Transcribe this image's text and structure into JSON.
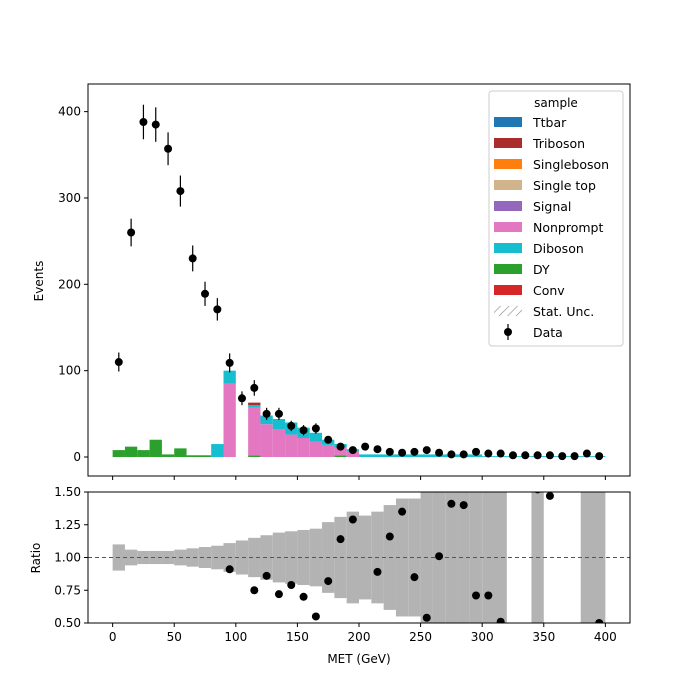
{
  "chart_data": [
    {
      "type": "bar",
      "panel": "main",
      "xlabel": "",
      "ylabel": "Events",
      "xlim": [
        -20,
        420
      ],
      "ylim": [
        -22,
        432
      ],
      "x_ticks": [
        0,
        50,
        100,
        150,
        200,
        250,
        300,
        350,
        400
      ],
      "y_ticks": [
        0,
        100,
        200,
        300,
        400
      ],
      "bin_width": 10,
      "stacked": true,
      "legend": {
        "title": "sample",
        "placement": "top-right",
        "entries": [
          {
            "label": "Ttbar",
            "color": "#1f77b4",
            "kind": "patch"
          },
          {
            "label": "Triboson",
            "color": "#aa2c2c",
            "kind": "patch"
          },
          {
            "label": "Singleboson",
            "color": "#ff7f0e",
            "kind": "patch"
          },
          {
            "label": "Single top",
            "color": "#d2b48c",
            "kind": "patch"
          },
          {
            "label": "Signal",
            "color": "#9467bd",
            "kind": "patch"
          },
          {
            "label": "Nonprompt",
            "color": "#e377c2",
            "kind": "patch"
          },
          {
            "label": "Diboson",
            "color": "#17becf",
            "kind": "patch"
          },
          {
            "label": "DY",
            "color": "#2ca02c",
            "kind": "patch"
          },
          {
            "label": "Conv",
            "color": "#d62728",
            "kind": "patch"
          },
          {
            "label": "Stat. Unc.",
            "color": "#888888",
            "kind": "hatch"
          },
          {
            "label": "Data",
            "color": "#000000",
            "kind": "errorbar"
          }
        ]
      },
      "series": [
        {
          "name": "DY",
          "color": "#2ca02c",
          "bins": [
            {
              "x0": 0,
              "x1": 10,
              "y": 8
            },
            {
              "x0": 10,
              "x1": 20,
              "y": 12
            },
            {
              "x0": 20,
              "x1": 30,
              "y": 8
            },
            {
              "x0": 30,
              "x1": 40,
              "y": 20
            },
            {
              "x0": 40,
              "x1": 50,
              "y": 3
            },
            {
              "x0": 50,
              "x1": 60,
              "y": 10
            },
            {
              "x0": 60,
              "x1": 80,
              "y": 2
            },
            {
              "x0": 110,
              "x1": 120,
              "y": 2
            },
            {
              "x0": 180,
              "x1": 190,
              "y": 2
            }
          ]
        },
        {
          "name": "Nonprompt",
          "color": "#e377c2",
          "bins": [
            {
              "x0": 90,
              "x1": 100,
              "y": 85
            },
            {
              "x0": 110,
              "x1": 120,
              "y": 55
            },
            {
              "x0": 120,
              "x1": 130,
              "y": 38
            },
            {
              "x0": 130,
              "x1": 140,
              "y": 32
            },
            {
              "x0": 140,
              "x1": 150,
              "y": 26
            },
            {
              "x0": 150,
              "x1": 160,
              "y": 22
            },
            {
              "x0": 160,
              "x1": 170,
              "y": 18
            },
            {
              "x0": 170,
              "x1": 180,
              "y": 14
            },
            {
              "x0": 180,
              "x1": 190,
              "y": 9
            },
            {
              "x0": 190,
              "x1": 200,
              "y": 6
            }
          ]
        },
        {
          "name": "Diboson",
          "color": "#17becf",
          "bins": [
            {
              "x0": 80,
              "x1": 90,
              "y": 15
            },
            {
              "x0": 90,
              "x1": 100,
              "y": 15
            },
            {
              "x0": 110,
              "x1": 120,
              "y": 3
            },
            {
              "x0": 120,
              "x1": 130,
              "y": 10
            },
            {
              "x0": 130,
              "x1": 140,
              "y": 12
            },
            {
              "x0": 140,
              "x1": 150,
              "y": 14
            },
            {
              "x0": 150,
              "x1": 160,
              "y": 12
            },
            {
              "x0": 160,
              "x1": 170,
              "y": 10
            },
            {
              "x0": 170,
              "x1": 180,
              "y": 6
            },
            {
              "x0": 180,
              "x1": 190,
              "y": 4
            },
            {
              "x0": 190,
              "x1": 200,
              "y": 3
            },
            {
              "x0": 200,
              "x1": 300,
              "y": 3
            },
            {
              "x0": 300,
              "x1": 400,
              "y": 1
            }
          ]
        },
        {
          "name": "Triboson",
          "color": "#aa2c2c",
          "bins": [
            {
              "x0": 110,
              "x1": 120,
              "y": 3
            }
          ]
        }
      ],
      "data_points": {
        "name": "Data",
        "x": [
          5,
          15,
          25,
          35,
          45,
          55,
          65,
          75,
          85,
          95,
          105,
          115,
          125,
          135,
          145,
          155,
          165,
          175,
          185,
          195,
          205,
          215,
          225,
          235,
          245,
          255,
          265,
          275,
          285,
          295,
          305,
          315,
          325,
          335,
          345,
          355,
          365,
          375,
          385,
          395
        ],
        "y": [
          110,
          260,
          388,
          385,
          357,
          308,
          230,
          189,
          171,
          109,
          68,
          80,
          50,
          50,
          36,
          31,
          33,
          20,
          12,
          8,
          12,
          9,
          6,
          5,
          6,
          8,
          5,
          3,
          3,
          6,
          4,
          4,
          2,
          2,
          2,
          2,
          1,
          1,
          4,
          1
        ],
        "yerr": [
          11,
          16,
          20,
          20,
          19,
          18,
          15,
          14,
          13,
          11,
          8,
          9,
          7,
          7,
          6,
          6,
          6,
          4,
          3,
          3,
          3,
          3,
          2,
          2,
          2,
          3,
          2,
          2,
          2,
          2,
          2,
          2,
          1,
          1,
          1,
          1,
          1,
          1,
          2,
          1
        ]
      }
    },
    {
      "type": "scatter",
      "panel": "ratio",
      "xlabel": "MET (GeV)",
      "ylabel": "Ratio",
      "xlim": [
        -20,
        420
      ],
      "ylim": [
        0.5,
        1.5
      ],
      "x_ticks": [
        0,
        50,
        100,
        150,
        200,
        250,
        300,
        350,
        400
      ],
      "y_ticks": [
        0.5,
        0.75,
        1.0,
        1.25,
        1.5
      ],
      "y_tick_labels": [
        "0.50",
        "0.75",
        "1.00",
        "1.25",
        "1.50"
      ],
      "reference_line": 1.0,
      "uncertainty_band": {
        "color": "#b3b3b3",
        "bins": [
          {
            "x0": 0,
            "x1": 10,
            "half_width": 0.1
          },
          {
            "x0": 10,
            "x1": 20,
            "half_width": 0.06
          },
          {
            "x0": 20,
            "x1": 30,
            "half_width": 0.05
          },
          {
            "x0": 30,
            "x1": 40,
            "half_width": 0.05
          },
          {
            "x0": 40,
            "x1": 50,
            "half_width": 0.05
          },
          {
            "x0": 50,
            "x1": 60,
            "half_width": 0.06
          },
          {
            "x0": 60,
            "x1": 70,
            "half_width": 0.07
          },
          {
            "x0": 70,
            "x1": 80,
            "half_width": 0.08
          },
          {
            "x0": 80,
            "x1": 90,
            "half_width": 0.09
          },
          {
            "x0": 90,
            "x1": 100,
            "half_width": 0.11
          },
          {
            "x0": 100,
            "x1": 110,
            "half_width": 0.13
          },
          {
            "x0": 110,
            "x1": 120,
            "half_width": 0.15
          },
          {
            "x0": 120,
            "x1": 130,
            "half_width": 0.17
          },
          {
            "x0": 130,
            "x1": 140,
            "half_width": 0.19
          },
          {
            "x0": 140,
            "x1": 150,
            "half_width": 0.2
          },
          {
            "x0": 150,
            "x1": 160,
            "half_width": 0.21
          },
          {
            "x0": 160,
            "x1": 170,
            "half_width": 0.22
          },
          {
            "x0": 170,
            "x1": 180,
            "half_width": 0.27
          },
          {
            "x0": 180,
            "x1": 190,
            "half_width": 0.31
          },
          {
            "x0": 190,
            "x1": 200,
            "half_width": 0.35
          },
          {
            "x0": 200,
            "x1": 210,
            "half_width": 0.32
          },
          {
            "x0": 210,
            "x1": 220,
            "half_width": 0.35
          },
          {
            "x0": 220,
            "x1": 230,
            "half_width": 0.4
          },
          {
            "x0": 230,
            "x1": 240,
            "half_width": 0.45
          },
          {
            "x0": 240,
            "x1": 250,
            "half_width": 0.45
          },
          {
            "x0": 250,
            "x1": 260,
            "half_width": 0.5
          },
          {
            "x0": 260,
            "x1": 270,
            "half_width": 0.5
          },
          {
            "x0": 270,
            "x1": 280,
            "half_width": 0.5
          },
          {
            "x0": 280,
            "x1": 290,
            "half_width": 0.5
          },
          {
            "x0": 290,
            "x1": 300,
            "half_width": 0.5
          },
          {
            "x0": 300,
            "x1": 310,
            "half_width": 0.5
          },
          {
            "x0": 310,
            "x1": 320,
            "half_width": 0.5
          },
          {
            "x0": 340,
            "x1": 350,
            "half_width": 0.5
          },
          {
            "x0": 380,
            "x1": 400,
            "half_width": 0.5
          }
        ]
      },
      "points": {
        "x": [
          95,
          115,
          125,
          135,
          145,
          155,
          165,
          175,
          185,
          195,
          215,
          225,
          235,
          245,
          255,
          265,
          275,
          285,
          295,
          305,
          315,
          345,
          355,
          395
        ],
        "y": [
          0.91,
          0.75,
          0.86,
          0.72,
          0.79,
          0.7,
          0.55,
          0.82,
          1.14,
          1.29,
          0.89,
          1.16,
          1.35,
          0.85,
          0.54,
          1.01,
          1.41,
          1.4,
          0.71,
          0.71,
          0.51,
          1.52,
          1.47,
          0.5
        ]
      }
    }
  ]
}
